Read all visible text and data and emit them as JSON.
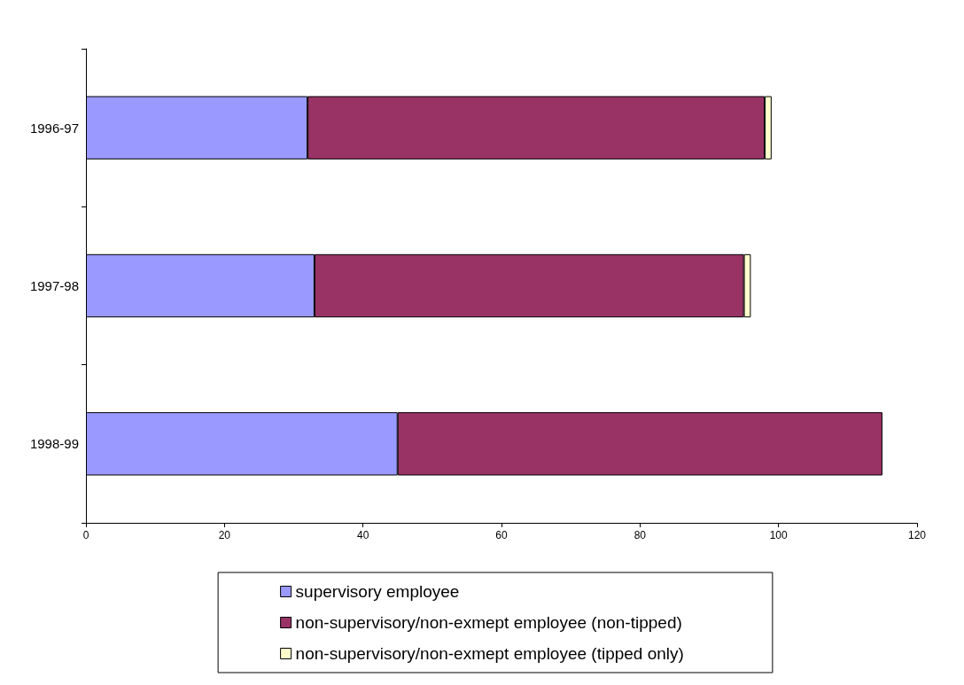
{
  "chart_data": {
    "type": "bar",
    "orientation": "horizontal",
    "stacked": true,
    "categories": [
      "1996-97",
      "1997-98",
      "1998-99"
    ],
    "series": [
      {
        "name": "supervisory employee",
        "color": "#9999ff",
        "values": [
          32,
          33,
          45
        ]
      },
      {
        "name": "non-supervisory/non-exmept employee (non-tipped)",
        "color": "#993366",
        "values": [
          66,
          62,
          70
        ]
      },
      {
        "name": "non-supervisory/non-exmept employee (tipped only)",
        "color": "#ffffcc",
        "values": [
          1,
          1,
          null
        ]
      }
    ],
    "xlim": [
      0,
      120
    ],
    "xticks": [
      0,
      20,
      40,
      60,
      80,
      100,
      120
    ],
    "grid": false,
    "legend": "bottom"
  }
}
